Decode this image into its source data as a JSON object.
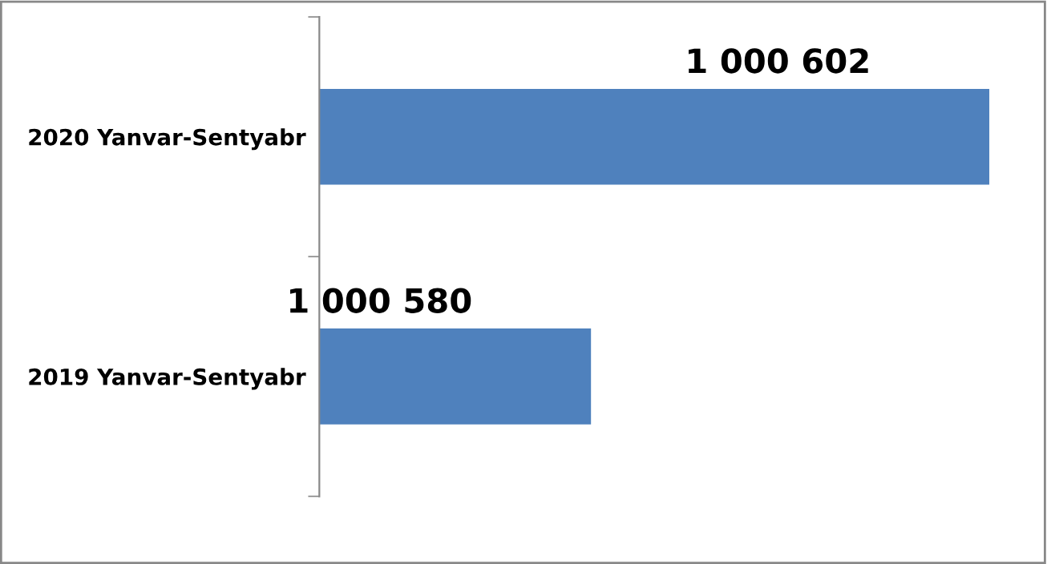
{
  "chart_data": {
    "type": "bar",
    "orientation": "horizontal",
    "categories": [
      "2020 Yanvar-Sentyabr",
      "2019 Yanvar-Sentyabr"
    ],
    "values": [
      1000602,
      1000580
    ],
    "value_labels": [
      "1 000 602",
      "1 000 580"
    ],
    "color": "#4f81bd",
    "xlim": [
      1000565,
      1000602
    ]
  }
}
